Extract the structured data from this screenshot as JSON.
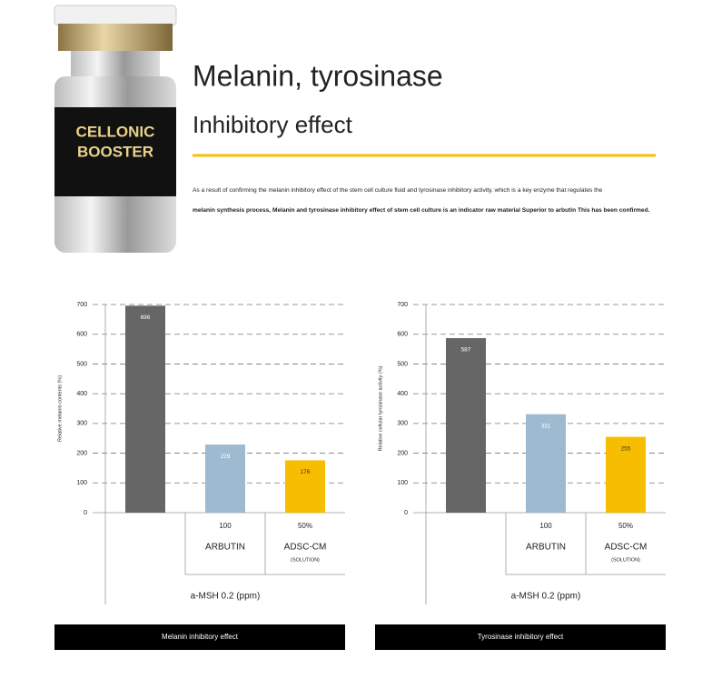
{
  "product": {
    "label": [
      "CELLONIC",
      "BOOSTER"
    ]
  },
  "header": {
    "title": "Melanin, tyrosinase",
    "subtitle": "Inhibitory effect",
    "description": [
      "As a result of confirming the melanin inhibitory effect of the stem cell culture fluid and tyrosinase inhibitory activity, which is a key enzyme that regulates the",
      "melanin synthesis process, Melanin and tyrosinase inhibitory effect of stem cell culture is an indicator raw material Superior to arbutin This has been confirmed."
    ]
  },
  "chart_data": [
    {
      "type": "bar",
      "ylabel": "Relative melanin contents (%)",
      "xlabel": "a-MSH 0.2 (ppm)",
      "caption": "Melanin inhibitory effect",
      "categories": [
        null,
        "100",
        "50%"
      ],
      "category_names": [
        null,
        "ARBUTIN",
        "ADSC-CM"
      ],
      "category_notes": [
        null,
        null,
        "(SOLUTION)"
      ],
      "values": [
        696,
        229,
        176
      ],
      "colors": [
        "#666666",
        "#9dbad1",
        "#f7bd00"
      ],
      "ylim": [
        0,
        700
      ],
      "yticks": [
        0,
        100,
        200,
        300,
        400,
        500,
        600,
        700
      ],
      "grid": true
    },
    {
      "type": "bar",
      "ylabel": "Relative cellular tyrosinase activity (%)",
      "xlabel": "a-MSH 0.2 (ppm)",
      "caption": "Tyrosinase inhibitory effect",
      "categories": [
        null,
        "100",
        "50%"
      ],
      "category_names": [
        null,
        "ARBUTIN",
        "ADSC-CM"
      ],
      "category_notes": [
        null,
        null,
        "(SOLUTION)"
      ],
      "values": [
        587,
        331,
        255
      ],
      "colors": [
        "#666666",
        "#9dbad1",
        "#f7bd00"
      ],
      "ylim": [
        0,
        700
      ],
      "yticks": [
        0,
        100,
        200,
        300,
        400,
        500,
        600,
        700
      ],
      "grid": true
    }
  ]
}
